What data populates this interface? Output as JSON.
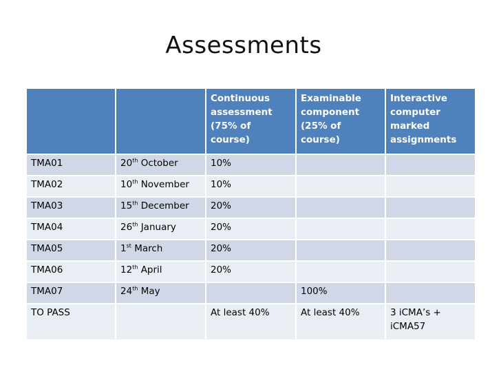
{
  "title": "Assessments",
  "headers": [
    "",
    "",
    "Continuous assessment (75% of course)",
    "Examinable component (25% of course)",
    "Interactive computer marked assignments"
  ],
  "rows": [
    {
      "name": "TMA01",
      "date_num": "20",
      "date_sup": "th",
      "date_rest": " October",
      "cont": "10%",
      "exam": "",
      "icma": ""
    },
    {
      "name": "TMA02",
      "date_num": "10",
      "date_sup": "th",
      "date_rest": " November",
      "cont": "10%",
      "exam": "",
      "icma": ""
    },
    {
      "name": "TMA03",
      "date_num": "15",
      "date_sup": "th",
      "date_rest": " December",
      "cont": "20%",
      "exam": "",
      "icma": ""
    },
    {
      "name": "TMA04",
      "date_num": "26",
      "date_sup": "th",
      "date_rest": " January",
      "cont": "20%",
      "exam": "",
      "icma": ""
    },
    {
      "name": "TMA05",
      "date_num": "1",
      "date_sup": "st",
      "date_rest": " March",
      "cont": "20%",
      "exam": "",
      "icma": ""
    },
    {
      "name": "TMA06",
      "date_num": "12",
      "date_sup": "th",
      "date_rest": " April",
      "cont": "20%",
      "exam": "",
      "icma": ""
    },
    {
      "name": "TMA07",
      "date_num": "24",
      "date_sup": "th",
      "date_rest": " May",
      "cont": "",
      "exam": "100%",
      "icma": ""
    }
  ],
  "pass_row": {
    "name": "TO PASS",
    "date": "",
    "cont": "At least 40%",
    "exam": "At least 40%",
    "icma": "3 iCMA’s  + iCMA57"
  },
  "colors": {
    "header_bg": "#4f81bd",
    "row_odd": "#d0d8e8",
    "row_even": "#e9edf4"
  }
}
